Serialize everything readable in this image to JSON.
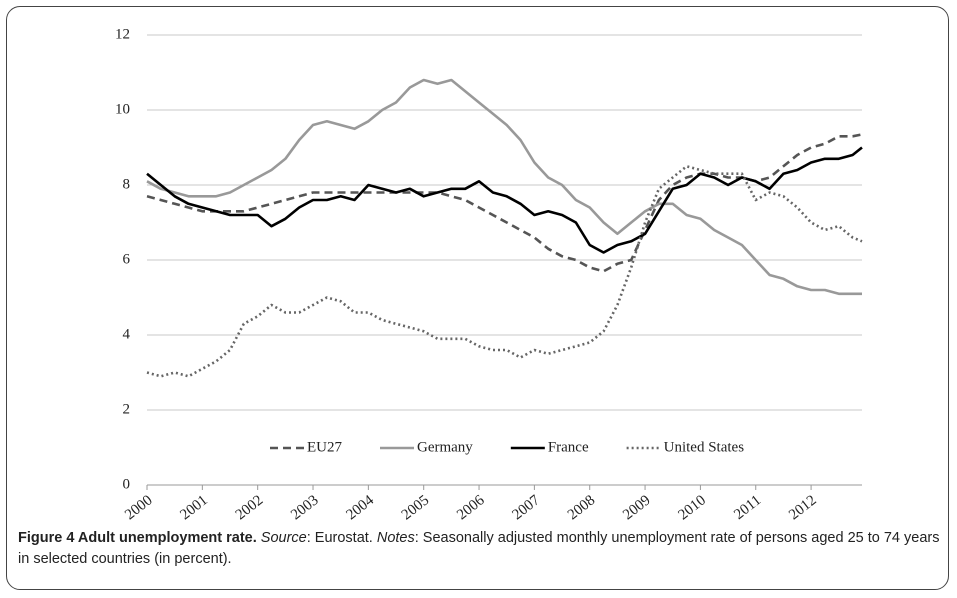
{
  "chart_data": {
    "type": "line",
    "x": [
      2000,
      2000.25,
      2000.5,
      2000.75,
      2001,
      2001.25,
      2001.5,
      2001.75,
      2002,
      2002.25,
      2002.5,
      2002.75,
      2003,
      2003.25,
      2003.5,
      2003.75,
      2004,
      2004.25,
      2004.5,
      2004.75,
      2005,
      2005.25,
      2005.5,
      2005.75,
      2006,
      2006.25,
      2006.5,
      2006.75,
      2007,
      2007.25,
      2007.5,
      2007.75,
      2008,
      2008.25,
      2008.5,
      2008.75,
      2009,
      2009.25,
      2009.5,
      2009.75,
      2010,
      2010.25,
      2010.5,
      2010.75,
      2011,
      2011.25,
      2011.5,
      2011.75,
      2012,
      2012.25,
      2012.5,
      2012.75,
      2012.92
    ],
    "series": [
      {
        "name": "EU27",
        "color": "#555555",
        "style": "dashed",
        "values": [
          7.7,
          7.6,
          7.5,
          7.4,
          7.3,
          7.3,
          7.3,
          7.3,
          7.4,
          7.5,
          7.6,
          7.7,
          7.8,
          7.8,
          7.8,
          7.8,
          7.8,
          7.8,
          7.8,
          7.8,
          7.8,
          7.8,
          7.7,
          7.6,
          7.4,
          7.2,
          7.0,
          6.8,
          6.6,
          6.3,
          6.1,
          6.0,
          5.8,
          5.7,
          5.9,
          6.0,
          6.8,
          7.6,
          8.0,
          8.2,
          8.3,
          8.3,
          8.2,
          8.2,
          8.1,
          8.2,
          8.5,
          8.8,
          9.0,
          9.1,
          9.3,
          9.3,
          9.35
        ]
      },
      {
        "name": "Germany",
        "color": "#999999",
        "style": "solid",
        "values": [
          8.1,
          7.9,
          7.8,
          7.7,
          7.7,
          7.7,
          7.8,
          8.0,
          8.2,
          8.4,
          8.7,
          9.2,
          9.6,
          9.7,
          9.6,
          9.5,
          9.7,
          10.0,
          10.2,
          10.6,
          10.8,
          10.7,
          10.8,
          10.5,
          10.2,
          9.9,
          9.6,
          9.2,
          8.6,
          8.2,
          8.0,
          7.6,
          7.4,
          7.0,
          6.7,
          7.0,
          7.3,
          7.5,
          7.5,
          7.2,
          7.1,
          6.8,
          6.6,
          6.4,
          6.0,
          5.6,
          5.5,
          5.3,
          5.2,
          5.2,
          5.1,
          5.1,
          5.1
        ]
      },
      {
        "name": "France",
        "color": "#000000",
        "style": "solid",
        "values": [
          8.3,
          8.0,
          7.7,
          7.5,
          7.4,
          7.3,
          7.2,
          7.2,
          7.2,
          6.9,
          7.1,
          7.4,
          7.6,
          7.6,
          7.7,
          7.6,
          8.0,
          7.9,
          7.8,
          7.9,
          7.7,
          7.8,
          7.9,
          7.9,
          8.1,
          7.8,
          7.7,
          7.5,
          7.2,
          7.3,
          7.2,
          7.0,
          6.4,
          6.2,
          6.4,
          6.5,
          6.7,
          7.3,
          7.9,
          8.0,
          8.3,
          8.2,
          8.0,
          8.2,
          8.1,
          7.9,
          8.3,
          8.4,
          8.6,
          8.7,
          8.7,
          8.8,
          9.0
        ]
      },
      {
        "name": "United States",
        "color": "#666666",
        "style": "dotted",
        "values": [
          3.0,
          2.9,
          3.0,
          2.9,
          3.1,
          3.3,
          3.6,
          4.3,
          4.5,
          4.8,
          4.6,
          4.6,
          4.8,
          5.0,
          4.9,
          4.6,
          4.6,
          4.4,
          4.3,
          4.2,
          4.1,
          3.9,
          3.9,
          3.9,
          3.7,
          3.6,
          3.6,
          3.4,
          3.6,
          3.5,
          3.6,
          3.7,
          3.8,
          4.1,
          4.8,
          5.8,
          7.0,
          7.9,
          8.2,
          8.5,
          8.4,
          8.3,
          8.3,
          8.3,
          7.6,
          7.8,
          7.7,
          7.4,
          7.0,
          6.8,
          6.9,
          6.6,
          6.5
        ]
      }
    ],
    "xlim": [
      2000,
      2012.92
    ],
    "xticks": [
      2000,
      2001,
      2002,
      2003,
      2004,
      2005,
      2006,
      2007,
      2008,
      2009,
      2010,
      2011,
      2012
    ],
    "ylim": [
      0,
      12
    ],
    "yticks": [
      0,
      2,
      4,
      6,
      8,
      10,
      12
    ],
    "grid": true,
    "legend": "bottom",
    "caption": {
      "title": "Figure 4 Adult unemployment rate.",
      "source_label": "Source",
      "source_text": ": Eurostat.",
      "notes_label": "Notes",
      "notes_text": ": Seasonally adjusted monthly unemployment rate of persons aged 25 to 74 years in selected countries (in percent)."
    }
  }
}
